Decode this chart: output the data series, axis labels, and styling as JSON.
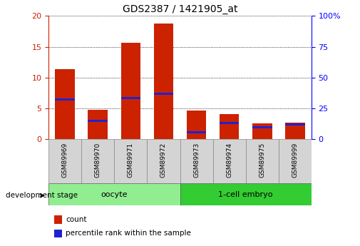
{
  "title": "GDS2387 / 1421905_at",
  "samples": [
    "GSM89969",
    "GSM89970",
    "GSM89971",
    "GSM89972",
    "GSM89973",
    "GSM89974",
    "GSM89975",
    "GSM89999"
  ],
  "count_values": [
    11.4,
    4.7,
    15.6,
    18.8,
    4.6,
    4.0,
    2.6,
    2.7
  ],
  "percentile_positions": [
    6.4,
    3.0,
    6.7,
    7.3,
    1.1,
    2.6,
    1.9,
    2.4
  ],
  "groups": [
    {
      "label": "oocyte",
      "start": 0,
      "end": 4,
      "color": "#90ee90"
    },
    {
      "label": "1-cell embryo",
      "start": 4,
      "end": 8,
      "color": "#33cc33"
    }
  ],
  "ylim_left": [
    0,
    20
  ],
  "ylim_right": [
    0,
    100
  ],
  "yticks_left": [
    0,
    5,
    10,
    15,
    20
  ],
  "yticks_right": [
    0,
    25,
    50,
    75,
    100
  ],
  "ytick_labels_right": [
    "0",
    "25",
    "50",
    "75",
    "100%"
  ],
  "bar_color_red": "#cc2200",
  "bar_color_blue": "#2222cc",
  "bar_width": 0.6,
  "group_label_text": "development stage",
  "legend_count": "count",
  "legend_percentile": "percentile rank within the sample"
}
